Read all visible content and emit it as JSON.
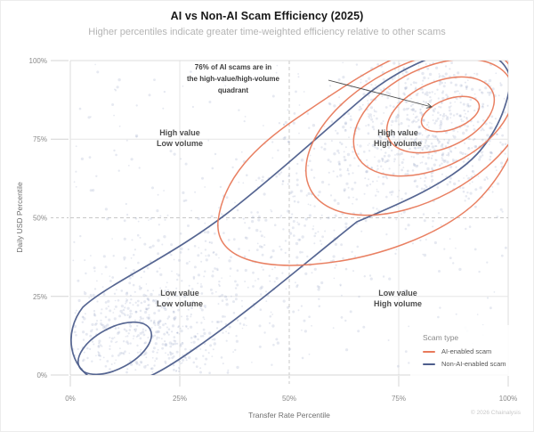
{
  "header": {
    "title": "AI vs Non-AI Scam Efficiency (2025)",
    "subtitle": "Higher percentiles indicate greater time-weighted efficiency relative to other scams"
  },
  "chart_data": {
    "type": "scatter",
    "subtype": "scatter-with-density-contours",
    "title": "AI vs Non-AI Scam Efficiency (2025)",
    "subtitle": "Higher percentiles indicate greater time-weighted efficiency relative to other scams",
    "xlabel": "Transfer Rate Percentile",
    "ylabel": "Daily USD Percentile",
    "xlim": [
      0,
      100
    ],
    "ylim": [
      0,
      100
    ],
    "x_ticks": [
      "0%",
      "25%",
      "50%",
      "75%",
      "100%"
    ],
    "y_ticks": [
      "0%",
      "25%",
      "50%",
      "75%",
      "100%"
    ],
    "grid": {
      "solid_lines_pct": [
        0,
        25,
        75,
        100
      ],
      "dashed_lines_pct": [
        50
      ]
    },
    "series": [
      {
        "name": "AI-enabled scam",
        "color": "#E8795A",
        "representation": "density contours (5 nested levels)",
        "density_peak": {
          "x_pct": 84,
          "y_pct": 84
        },
        "spread": "elongated along the diagonal from ~(45%,40%) to beyond (100%,100%)"
      },
      {
        "name": "Non-AI-enabled scam",
        "color": "#4D5E8C",
        "representation": "density contours (2 levels)",
        "density_peaks": [
          {
            "x_pct": 12,
            "y_pct": 9
          },
          {
            "x_pct": 90,
            "y_pct": 95
          }
        ],
        "spread": "broad band spanning from low-value/low-volume to high-value/high-volume"
      }
    ],
    "scatter_background": {
      "description": "dense cloud of faint gray-blue points (individual scams)",
      "clusters": [
        {
          "x_pct": 84,
          "y_pct": 80,
          "density": "high"
        },
        {
          "x_pct": 16,
          "y_pct": 13,
          "density": "high"
        },
        {
          "x_pct": "diagonal band 15-85",
          "y_pct": "12-84",
          "density": "medium"
        }
      ]
    },
    "annotations": [
      {
        "text": "76% of AI scams are in the high-value/high-volume quadrant",
        "text_position_pct": {
          "x": 37,
          "y": 93
        },
        "arrow_target_pct": {
          "x": 83,
          "y": 85
        }
      }
    ],
    "quadrant_labels": [
      {
        "position": "top-left",
        "lines": [
          "High value",
          "Low volume"
        ]
      },
      {
        "position": "top-right",
        "lines": [
          "High value",
          "High volume"
        ]
      },
      {
        "position": "bottom-left",
        "lines": [
          "Low value",
          "Low volume"
        ]
      },
      {
        "position": "bottom-right",
        "lines": [
          "Low value",
          "High volume"
        ]
      }
    ],
    "legend": {
      "title": "Scam type",
      "position": "bottom-right",
      "entries": [
        "AI-enabled scam",
        "Non-AI-enabled scam"
      ]
    }
  },
  "axes": {
    "x_label": "Transfer Rate Percentile",
    "y_label": "Daily USD Percentile",
    "x_ticks": [
      "0%",
      "25%",
      "50%",
      "75%",
      "100%"
    ],
    "y_ticks": [
      "0%",
      "25%",
      "50%",
      "75%",
      "100%"
    ]
  },
  "quadrants": {
    "top_left": {
      "line1": "High value",
      "line2": "Low volume"
    },
    "top_right": {
      "line1": "High value",
      "line2": "High volume"
    },
    "bottom_left": {
      "line1": "Low value",
      "line2": "Low volume"
    },
    "bottom_right": {
      "line1": "Low value",
      "line2": "High volume"
    }
  },
  "annotation": {
    "line1": "76% of AI scams are in",
    "line2": "the high-value/high-volume",
    "line3": "quadrant"
  },
  "legend": {
    "title": "Scam type",
    "items": [
      {
        "label": "AI-enabled scam",
        "color": "#E8795A"
      },
      {
        "label": "Non-AI-enabled scam",
        "color": "#4D5E8C"
      }
    ]
  },
  "footer": {
    "copyright": "© 2026 Chainalysis"
  },
  "colors": {
    "ai_contour": "#E8795A",
    "non_ai_contour": "#4D5E8C",
    "scatter_dot": "#8F9CC0",
    "grid_solid": "#e6e6e6",
    "grid_edge": "#dcdcdc",
    "grid_dashed": "#c8c8c8",
    "title_text": "#171717",
    "subtitle_text": "#b4b4b4",
    "quadrant_text": "#4d4d4d",
    "axis_text": "#8a8a8a",
    "annotation_text": "#3d3d3d",
    "copyright_text": "#c9c9c9"
  }
}
